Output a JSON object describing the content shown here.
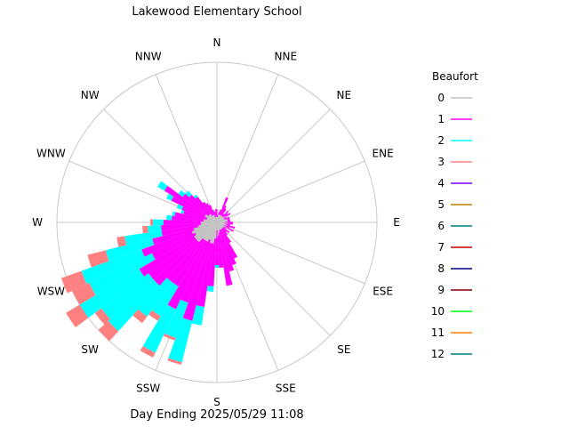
{
  "chart_data": {
    "type": "wind-rose",
    "title": "Lakewood Elementary School",
    "footer": "Day Ending 2025/05/29 11:08",
    "directions": [
      "N",
      "NNE",
      "NE",
      "ENE",
      "E",
      "ESE",
      "SE",
      "SSE",
      "S",
      "SSW",
      "SW",
      "WSW",
      "W",
      "WNW",
      "NW",
      "NNW"
    ],
    "legend": {
      "title": "Beaufort",
      "entries": [
        {
          "label": "0",
          "color": "#c0c0c0"
        },
        {
          "label": "1",
          "color": "#ff00ff"
        },
        {
          "label": "2",
          "color": "#00ffff"
        },
        {
          "label": "3",
          "color": "#ff8080"
        },
        {
          "label": "4",
          "color": "#8000ff"
        },
        {
          "label": "5",
          "color": "#c08000"
        },
        {
          "label": "6",
          "color": "#008080"
        },
        {
          "label": "7",
          "color": "#c00000"
        },
        {
          "label": "8",
          "color": "#000080"
        },
        {
          "label": "9",
          "color": "#800000"
        },
        {
          "label": "10",
          "color": "#00ff00"
        },
        {
          "label": "11",
          "color": "#ff8000"
        },
        {
          "label": "12",
          "color": "#008080"
        }
      ]
    },
    "bins_per_sector": 5,
    "sector_bins": [
      [
        2,
        3,
        0,
        0,
        0
      ],
      [
        2,
        1,
        0,
        0,
        0
      ],
      [
        3,
        1,
        0,
        0,
        0
      ],
      [
        3,
        2,
        0,
        0,
        0
      ],
      [
        3,
        7,
        0,
        0,
        0
      ],
      [
        3,
        4,
        0,
        0,
        0
      ],
      [
        3,
        3,
        0,
        0,
        0
      ],
      [
        3,
        1,
        0,
        0,
        0
      ],
      [
        3,
        3,
        0,
        0,
        0
      ],
      [
        3,
        2,
        0,
        0,
        0
      ],
      [
        4,
        2,
        0,
        0,
        0
      ],
      [
        3,
        1,
        0,
        0,
        0
      ],
      [
        3,
        2,
        0,
        0,
        0
      ],
      [
        4,
        1,
        0,
        0,
        0
      ],
      [
        4,
        1,
        0,
        0,
        0
      ],
      [
        4,
        1,
        0,
        0,
        0
      ],
      [
        3,
        3,
        0,
        0,
        0
      ],
      [
        4,
        2,
        0,
        0,
        0
      ],
      [
        3,
        2,
        0,
        0,
        0
      ],
      [
        4,
        3,
        0,
        0,
        0
      ],
      [
        3,
        2,
        0,
        0,
        0
      ],
      [
        4,
        3,
        0,
        0,
        0
      ],
      [
        3,
        1,
        0,
        0,
        0
      ],
      [
        3,
        3,
        0,
        0,
        0
      ],
      [
        3,
        2,
        0,
        0,
        0
      ],
      [
        3,
        3,
        0,
        0,
        0
      ],
      [
        3,
        6,
        0,
        0,
        0
      ],
      [
        3,
        12,
        0,
        0,
        0
      ],
      [
        3,
        14,
        0,
        0,
        0
      ],
      [
        3,
        16,
        0,
        0,
        0
      ],
      [
        4,
        20,
        0,
        0,
        0
      ],
      [
        5,
        12,
        0,
        0,
        0
      ],
      [
        3,
        13,
        1,
        0,
        0
      ],
      [
        6,
        18,
        2,
        0,
        0
      ],
      [
        8,
        24,
        7,
        0,
        0
      ],
      [
        8,
        30,
        16,
        1,
        0
      ],
      [
        7,
        25,
        14,
        1,
        0
      ],
      [
        8,
        28,
        18,
        2,
        0
      ],
      [
        8,
        20,
        13,
        2,
        0
      ],
      [
        8,
        20,
        16,
        3,
        0
      ],
      [
        10,
        22,
        23,
        5,
        0
      ],
      [
        10,
        22,
        22,
        3,
        0
      ],
      [
        10,
        24,
        26,
        6,
        0
      ],
      [
        9,
        18,
        26,
        7,
        0
      ],
      [
        10,
        20,
        24,
        8,
        0
      ],
      [
        9,
        16,
        18,
        7,
        0
      ],
      [
        7,
        14,
        14,
        3,
        0
      ],
      [
        6,
        15,
        5,
        2,
        0
      ],
      [
        6,
        14,
        4,
        1,
        0
      ],
      [
        5,
        12,
        2,
        0,
        0
      ],
      [
        5,
        11,
        1,
        0,
        0
      ],
      [
        4,
        9,
        1,
        0,
        0
      ],
      [
        4,
        10,
        2,
        0,
        0
      ],
      [
        5,
        14,
        2,
        0,
        0
      ],
      [
        5,
        18,
        3,
        0,
        0
      ],
      [
        4,
        12,
        2,
        0,
        0
      ],
      [
        4,
        10,
        2,
        0,
        0
      ],
      [
        4,
        8,
        1,
        0,
        0
      ],
      [
        3,
        6,
        0,
        0,
        0
      ],
      [
        3,
        5,
        0,
        0,
        0
      ],
      [
        3,
        4,
        0,
        0,
        0
      ],
      [
        2,
        3,
        0,
        0,
        0
      ],
      [
        2,
        2,
        0,
        0,
        0
      ],
      [
        2,
        3,
        0,
        0,
        0
      ]
    ],
    "grid": true
  }
}
